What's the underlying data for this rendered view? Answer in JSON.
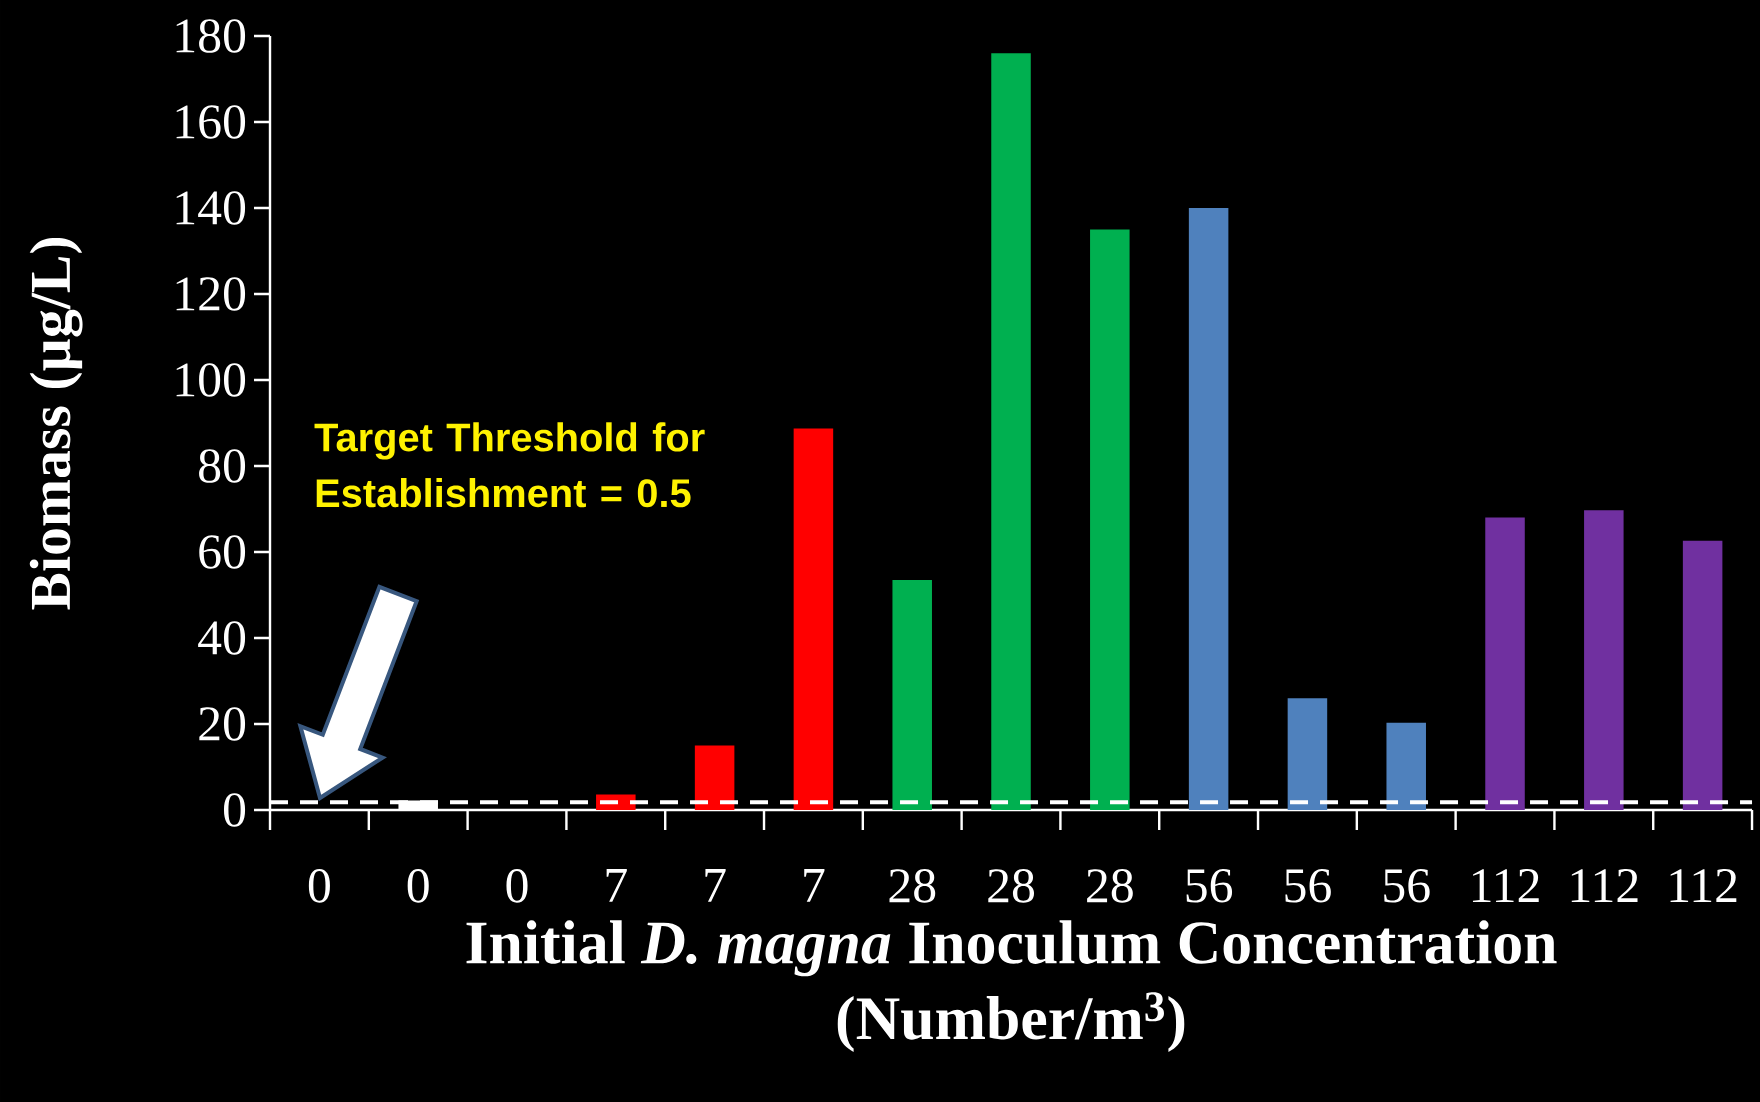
{
  "chart_data": {
    "type": "bar",
    "xlabel": "Initial *D. magna* Inoculum Concentration (Number/m$^{3}$)",
    "ylabel": "Biomass (µg/L)",
    "categories": [
      "0",
      "0",
      "0",
      "7",
      "7",
      "7",
      "28",
      "28",
      "28",
      "56",
      "56",
      "56",
      "112",
      "112",
      "112"
    ],
    "values": [
      0,
      2.2,
      0,
      3.6,
      15,
      88.7,
      53.5,
      176,
      135,
      140,
      26,
      20.3,
      68,
      69.7,
      62.6
    ],
    "colors": [
      "#ffffff",
      "#ffffff",
      "#ffffff",
      "#ff0000",
      "#ff0000",
      "#ff0000",
      "#00b050",
      "#00b050",
      "#00b050",
      "#4f81bd",
      "#4f81bd",
      "#4f81bd",
      "#7030a0",
      "#7030a0",
      "#7030a0"
    ],
    "ylim": [
      0,
      180
    ],
    "yticks": [
      0,
      20,
      40,
      60,
      80,
      100,
      120,
      140,
      160,
      180
    ],
    "annotations": [
      "Target Threshold for Establishment = 0.5"
    ],
    "ref_lines": [
      {
        "axis": "y",
        "value": 1.8,
        "color": "#ffffff",
        "line_style": "dashed"
      }
    ]
  }
}
